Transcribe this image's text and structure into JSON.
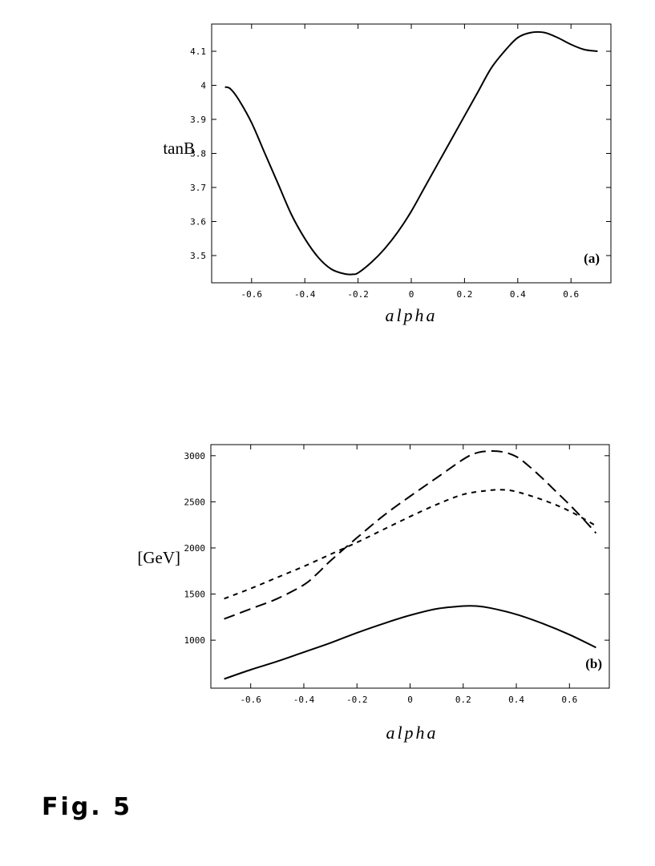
{
  "figure": {
    "caption": "Fig. 5"
  },
  "chart_data": [
    {
      "type": "line",
      "panel_label": "(a)",
      "title": "",
      "xlabel": "alpha",
      "ylabel": "tanB",
      "xlim": [
        -0.75,
        0.75
      ],
      "ylim": [
        3.42,
        4.18
      ],
      "xticks": [
        -0.6,
        -0.4,
        -0.2,
        0,
        0.2,
        0.4,
        0.6
      ],
      "xtick_labels": [
        "-0.6",
        "-0.4",
        "-0.2",
        "0",
        "0.2",
        "0.4",
        "0.6"
      ],
      "yticks": [
        3.5,
        3.6,
        3.7,
        3.8,
        3.9,
        4.0,
        4.1
      ],
      "ytick_labels": [
        "3.5",
        "3.6",
        "3.7",
        "3.8",
        "3.9",
        "4",
        "4.1"
      ],
      "grid": false,
      "series": [
        {
          "style": "solid",
          "x": [
            -0.7,
            -0.68,
            -0.65,
            -0.6,
            -0.55,
            -0.5,
            -0.45,
            -0.4,
            -0.35,
            -0.3,
            -0.25,
            -0.22,
            -0.2,
            -0.15,
            -0.1,
            -0.05,
            0,
            0.05,
            0.1,
            0.15,
            0.2,
            0.25,
            0.3,
            0.35,
            0.4,
            0.45,
            0.5,
            0.55,
            0.6,
            0.65,
            0.7
          ],
          "y": [
            3.995,
            3.99,
            3.96,
            3.89,
            3.8,
            3.71,
            3.62,
            3.55,
            3.495,
            3.46,
            3.446,
            3.445,
            3.449,
            3.48,
            3.52,
            3.57,
            3.63,
            3.7,
            3.77,
            3.84,
            3.91,
            3.98,
            4.05,
            4.1,
            4.14,
            4.155,
            4.155,
            4.14,
            4.12,
            4.105,
            4.1
          ]
        }
      ]
    },
    {
      "type": "line",
      "panel_label": "(b)",
      "title": "",
      "xlabel": "alpha",
      "ylabel": "[GeV]",
      "xlim": [
        -0.75,
        0.75
      ],
      "ylim": [
        480,
        3120
      ],
      "xticks": [
        -0.6,
        -0.4,
        -0.2,
        0,
        0.2,
        0.4,
        0.6
      ],
      "xtick_labels": [
        "-0.6",
        "-0.4",
        "-0.2",
        "0",
        "0.2",
        "0.4",
        "0.6"
      ],
      "yticks": [
        1000,
        1500,
        2000,
        2500,
        3000
      ],
      "ytick_labels": [
        "1000",
        "1500",
        "2000",
        "2500",
        "3000"
      ],
      "grid": false,
      "series": [
        {
          "style": "long-dash",
          "x": [
            -0.7,
            -0.6,
            -0.5,
            -0.4,
            -0.35,
            -0.3,
            -0.2,
            -0.1,
            0,
            0.1,
            0.2,
            0.25,
            0.3,
            0.35,
            0.4,
            0.45,
            0.5,
            0.55,
            0.6,
            0.65,
            0.7
          ],
          "y": [
            1230,
            1340,
            1450,
            1600,
            1720,
            1860,
            2110,
            2350,
            2560,
            2760,
            2960,
            3030,
            3050,
            3040,
            2990,
            2880,
            2750,
            2610,
            2470,
            2320,
            2160
          ]
        },
        {
          "style": "short-dash",
          "x": [
            -0.7,
            -0.6,
            -0.5,
            -0.4,
            -0.3,
            -0.2,
            -0.1,
            0,
            0.1,
            0.2,
            0.3,
            0.35,
            0.4,
            0.5,
            0.6,
            0.7
          ],
          "y": [
            1450,
            1560,
            1680,
            1800,
            1930,
            2060,
            2200,
            2340,
            2470,
            2580,
            2625,
            2630,
            2610,
            2520,
            2400,
            2240
          ]
        },
        {
          "style": "solid",
          "x": [
            -0.7,
            -0.6,
            -0.5,
            -0.4,
            -0.3,
            -0.2,
            -0.1,
            0,
            0.1,
            0.2,
            0.25,
            0.3,
            0.4,
            0.5,
            0.6,
            0.7
          ],
          "y": [
            580,
            680,
            770,
            870,
            970,
            1080,
            1180,
            1270,
            1340,
            1370,
            1370,
            1350,
            1280,
            1180,
            1060,
            920
          ]
        }
      ]
    }
  ]
}
